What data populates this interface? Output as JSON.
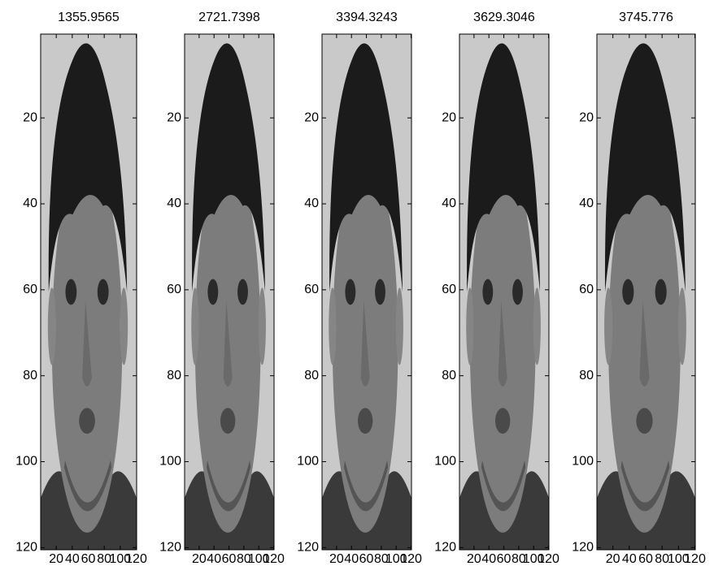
{
  "chart_data": [
    {
      "type": "image",
      "title": "1355.9565",
      "xlim": [
        0.5,
        120.5
      ],
      "ylim": [
        0.5,
        120.5
      ],
      "xticks": [
        20,
        40,
        60,
        80,
        100,
        120
      ],
      "yticks": [
        20,
        40,
        60,
        80,
        100,
        120
      ]
    },
    {
      "type": "image",
      "title": "2721.7398",
      "xlim": [
        0.5,
        120.5
      ],
      "ylim": [
        0.5,
        120.5
      ],
      "xticks": [
        20,
        40,
        60,
        80,
        100,
        120
      ],
      "yticks": [
        20,
        40,
        60,
        80,
        100,
        120
      ]
    },
    {
      "type": "image",
      "title": "3394.3243",
      "xlim": [
        0.5,
        120.5
      ],
      "ylim": [
        0.5,
        120.5
      ],
      "xticks": [
        20,
        40,
        60,
        80,
        100,
        120
      ],
      "yticks": [
        20,
        40,
        60,
        80,
        100,
        120
      ]
    },
    {
      "type": "image",
      "title": "3629.3046",
      "xlim": [
        0.5,
        120.5
      ],
      "ylim": [
        0.5,
        120.5
      ],
      "xticks": [
        20,
        40,
        60,
        80,
        100,
        120
      ],
      "yticks": [
        20,
        40,
        60,
        80,
        100,
        120
      ]
    },
    {
      "type": "image",
      "title": "3745.776",
      "xlim": [
        0.5,
        120.5
      ],
      "ylim": [
        0.5,
        120.5
      ],
      "xticks": [
        20,
        40,
        60,
        80,
        100,
        120
      ],
      "yticks": [
        20,
        40,
        60,
        80,
        100,
        120
      ]
    }
  ]
}
